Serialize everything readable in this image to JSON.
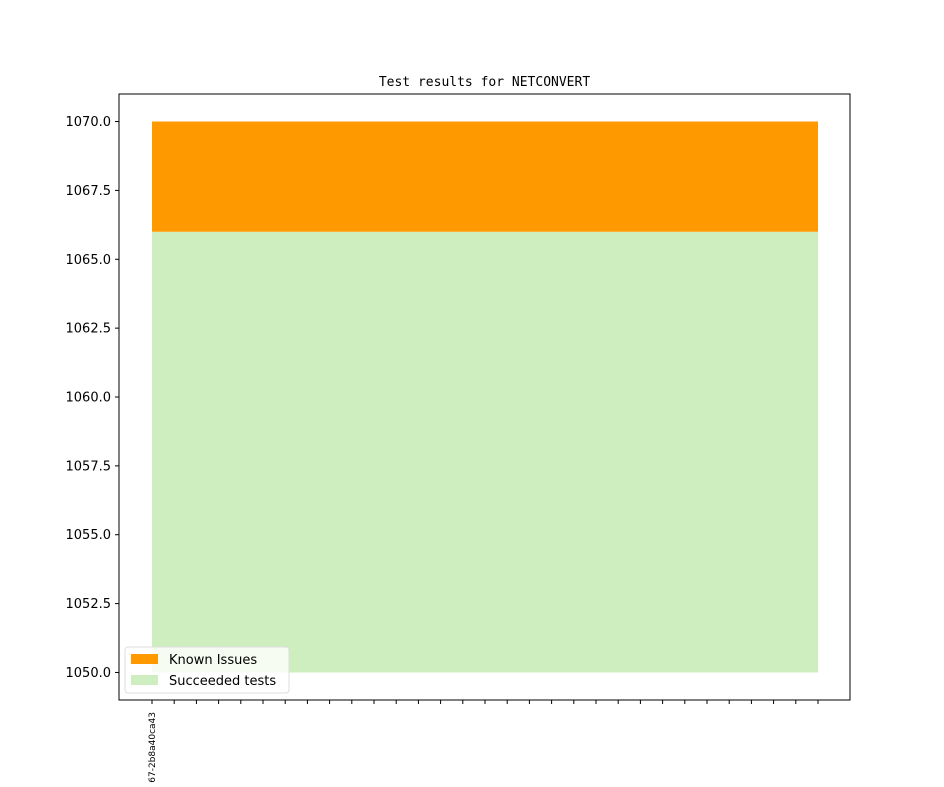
{
  "chart_data": {
    "type": "area",
    "title": "Test results for NETCONVERT",
    "categories": [
      "67-2b8a40ca43",
      null,
      null,
      null,
      null,
      null,
      null,
      null,
      null,
      null,
      null,
      null,
      null,
      null,
      null,
      null,
      null,
      null,
      null,
      null,
      null,
      null,
      null,
      null,
      null,
      null,
      null,
      null,
      null,
      null,
      null
    ],
    "series": [
      {
        "name": "Known Issues",
        "color": "#ff9900",
        "values": [
          4,
          4,
          4,
          4,
          4,
          4,
          4,
          4,
          4,
          4,
          4,
          4,
          4,
          4,
          4,
          4,
          4,
          4,
          4,
          4,
          4,
          4,
          4,
          4,
          4,
          4,
          4,
          4,
          4,
          4,
          4
        ]
      },
      {
        "name": "Succeeded tests",
        "color": "#cfeebf",
        "values": [
          1066,
          1066,
          1066,
          1066,
          1066,
          1066,
          1066,
          1066,
          1066,
          1066,
          1066,
          1066,
          1066,
          1066,
          1066,
          1066,
          1066,
          1066,
          1066,
          1066,
          1066,
          1066,
          1066,
          1066,
          1066,
          1066,
          1066,
          1066,
          1066,
          1066,
          1066
        ]
      }
    ],
    "ylim": [
      1049,
      1071
    ],
    "yticks": [
      {
        "value": 1050,
        "label": "1050.0"
      },
      {
        "value": 1052.5,
        "label": "1052.5"
      },
      {
        "value": 1055,
        "label": "1055.0"
      },
      {
        "value": 1057.5,
        "label": "1057.5"
      },
      {
        "value": 1060,
        "label": "1060.0"
      },
      {
        "value": 1062.5,
        "label": "1062.5"
      },
      {
        "value": 1065,
        "label": "1065.0"
      },
      {
        "value": 1067.5,
        "label": "1067.5"
      },
      {
        "value": 1070,
        "label": "1070.0"
      }
    ],
    "legend": "lower left",
    "grid": false
  }
}
